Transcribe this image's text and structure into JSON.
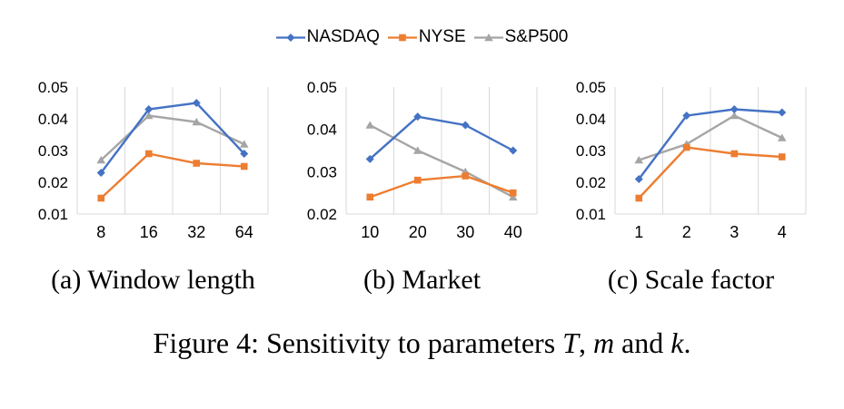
{
  "colors": {
    "nasdaq_blue": "#4472C4",
    "nyse_orange": "#ED7D31",
    "sp500_gray": "#A5A5A5",
    "gridline": "#D9D9D9",
    "axis_line": "#D9D9D9",
    "text": "#000000",
    "background": "#FFFFFF"
  },
  "legend": {
    "items": [
      {
        "label": "NASDAQ",
        "color": "#4472C4",
        "marker": "diamond"
      },
      {
        "label": "NYSE",
        "color": "#ED7D31",
        "marker": "square"
      },
      {
        "label": "S&P500",
        "color": "#A5A5A5",
        "marker": "triangle"
      }
    ]
  },
  "chart_data": [
    {
      "type": "line",
      "caption": "(a) Window length",
      "categories": [
        "8",
        "16",
        "32",
        "64"
      ],
      "ylim": [
        0.01,
        0.05
      ],
      "yticks": [
        "0.05",
        "0.04",
        "0.03",
        "0.02",
        "0.01"
      ],
      "grid": "vertical",
      "legend_position": "top-shared",
      "series": [
        {
          "name": "NASDAQ",
          "color": "#4472C4",
          "marker": "diamond",
          "values": [
            0.023,
            0.043,
            0.045,
            0.029
          ]
        },
        {
          "name": "NYSE",
          "color": "#ED7D31",
          "marker": "square",
          "values": [
            0.015,
            0.029,
            0.026,
            0.025
          ]
        },
        {
          "name": "S&P500",
          "color": "#A5A5A5",
          "marker": "triangle",
          "values": [
            0.027,
            0.041,
            0.039,
            0.032
          ]
        }
      ]
    },
    {
      "type": "line",
      "caption": "(b) Market",
      "categories": [
        "10",
        "20",
        "30",
        "40"
      ],
      "ylim": [
        0.02,
        0.05
      ],
      "yticks": [
        "0.05",
        "0.04",
        "0.03",
        "0.02"
      ],
      "grid": "vertical",
      "legend_position": "top-shared",
      "series": [
        {
          "name": "NASDAQ",
          "color": "#4472C4",
          "marker": "diamond",
          "values": [
            0.033,
            0.043,
            0.041,
            0.035
          ]
        },
        {
          "name": "NYSE",
          "color": "#ED7D31",
          "marker": "square",
          "values": [
            0.024,
            0.028,
            0.029,
            0.025
          ]
        },
        {
          "name": "S&P500",
          "color": "#A5A5A5",
          "marker": "triangle",
          "values": [
            0.041,
            0.035,
            0.03,
            0.024
          ]
        }
      ]
    },
    {
      "type": "line",
      "caption": "(c) Scale factor",
      "categories": [
        "1",
        "2",
        "3",
        "4"
      ],
      "ylim": [
        0.01,
        0.05
      ],
      "yticks": [
        "0.05",
        "0.04",
        "0.03",
        "0.02",
        "0.01"
      ],
      "grid": "vertical",
      "legend_position": "top-shared",
      "series": [
        {
          "name": "NASDAQ",
          "color": "#4472C4",
          "marker": "diamond",
          "values": [
            0.021,
            0.041,
            0.043,
            0.042
          ]
        },
        {
          "name": "NYSE",
          "color": "#ED7D31",
          "marker": "square",
          "values": [
            0.015,
            0.031,
            0.029,
            0.028
          ]
        },
        {
          "name": "S&P500",
          "color": "#A5A5A5",
          "marker": "triangle",
          "values": [
            0.027,
            0.032,
            0.041,
            0.034
          ]
        }
      ]
    }
  ],
  "figure_caption": {
    "before": "Figure 4: Sensitivity to parameters ",
    "param_T": "T",
    "sep1": ", ",
    "param_m": "m",
    "sep2": " and ",
    "param_k": "k",
    "period": "."
  }
}
